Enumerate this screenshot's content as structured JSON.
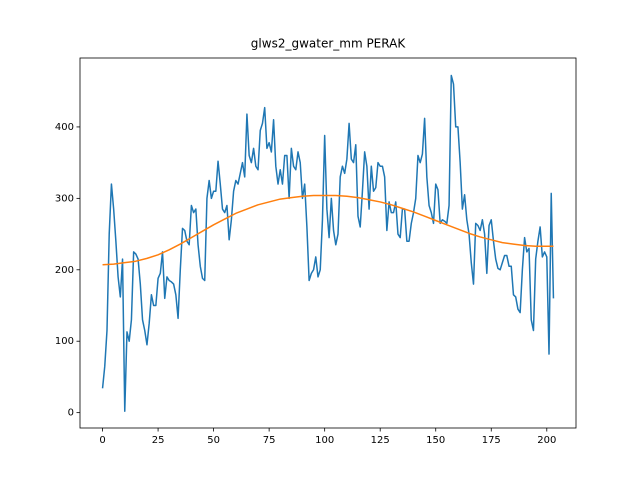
{
  "chart_data": {
    "type": "line",
    "title": "glws2_gwater_mm PERAK",
    "xlim": [
      -10.15,
      213.15
    ],
    "ylim": [
      -21.5,
      496.5
    ],
    "xticks": [
      0,
      25,
      50,
      75,
      100,
      125,
      150,
      175,
      200
    ],
    "yticks": [
      0,
      100,
      200,
      300,
      400
    ],
    "series": [
      {
        "color": "#1f77b4",
        "x": [
          0,
          1,
          2,
          3,
          4,
          5,
          6,
          7,
          8,
          9,
          10,
          11,
          12,
          13,
          14,
          15,
          16,
          17,
          18,
          19,
          20,
          21,
          22,
          23,
          24,
          25,
          26,
          27,
          28,
          29,
          30,
          31,
          32,
          33,
          34,
          35,
          36,
          37,
          38,
          39,
          40,
          41,
          42,
          43,
          44,
          45,
          46,
          47,
          48,
          49,
          50,
          51,
          52,
          53,
          54,
          55,
          56,
          57,
          58,
          59,
          60,
          61,
          62,
          63,
          64,
          65,
          66,
          67,
          68,
          69,
          70,
          71,
          72,
          73,
          74,
          75,
          76,
          77,
          78,
          79,
          80,
          81,
          82,
          83,
          84,
          85,
          86,
          87,
          88,
          89,
          90,
          91,
          92,
          93,
          94,
          95,
          96,
          97,
          98,
          99,
          100,
          101,
          102,
          103,
          104,
          105,
          106,
          107,
          108,
          109,
          110,
          111,
          112,
          113,
          114,
          115,
          116,
          117,
          118,
          119,
          120,
          121,
          122,
          123,
          124,
          125,
          126,
          127,
          128,
          129,
          130,
          131,
          132,
          133,
          134,
          135,
          136,
          137,
          138,
          139,
          140,
          141,
          142,
          143,
          144,
          145,
          146,
          147,
          148,
          149,
          150,
          151,
          152,
          153,
          154,
          155,
          156,
          157,
          158,
          159,
          160,
          161,
          162,
          163,
          164,
          165,
          166,
          167,
          168,
          169,
          170,
          171,
          172,
          173,
          174,
          175,
          176,
          177,
          178,
          179,
          180,
          181,
          182,
          183,
          184,
          185,
          186,
          187,
          188,
          189,
          190,
          191,
          192,
          193,
          194,
          195,
          196,
          197,
          198,
          199,
          200,
          201,
          202,
          203
        ],
        "values": [
          34,
          65,
          115,
          250,
          320,
          285,
          240,
          190,
          162,
          215,
          2,
          113,
          100,
          130,
          225,
          222,
          215,
          180,
          130,
          115,
          95,
          125,
          165,
          150,
          150,
          188,
          195,
          225,
          160,
          190,
          185,
          183,
          180,
          165,
          132,
          200,
          258,
          255,
          240,
          235,
          290,
          280,
          285,
          235,
          205,
          188,
          185,
          300,
          325,
          300,
          310,
          310,
          352,
          320,
          285,
          280,
          290,
          242,
          270,
          310,
          325,
          320,
          335,
          350,
          330,
          418,
          360,
          350,
          370,
          345,
          340,
          395,
          405,
          427,
          370,
          378,
          365,
          410,
          345,
          320,
          340,
          320,
          360,
          360,
          300,
          370,
          345,
          340,
          365,
          350,
          300,
          320,
          260,
          185,
          195,
          200,
          218,
          190,
          200,
          270,
          388,
          285,
          245,
          300,
          255,
          235,
          250,
          330,
          345,
          335,
          355,
          405,
          355,
          350,
          375,
          275,
          260,
          310,
          365,
          345,
          285,
          345,
          310,
          315,
          350,
          345,
          345,
          330,
          255,
          295,
          280,
          280,
          295,
          250,
          245,
          285,
          285,
          240,
          240,
          265,
          280,
          300,
          360,
          350,
          362,
          412,
          330,
          290,
          280,
          265,
          320,
          312,
          265,
          270,
          268,
          265,
          290,
          472,
          460,
          400,
          400,
          350,
          285,
          305,
          270,
          250,
          210,
          180,
          265,
          262,
          255,
          270,
          250,
          195,
          262,
          270,
          240,
          215,
          202,
          200,
          210,
          220,
          220,
          205,
          205,
          165,
          162,
          145,
          140,
          200,
          245,
          225,
          230,
          130,
          115,
          215,
          240,
          260,
          218,
          225,
          218,
          82,
          307,
          160
        ]
      },
      {
        "color": "#ff7f0e",
        "x": [
          0,
          5,
          10,
          15,
          20,
          25,
          30,
          35,
          40,
          45,
          50,
          55,
          60,
          65,
          70,
          75,
          80,
          85,
          90,
          95,
          100,
          105,
          110,
          115,
          120,
          125,
          130,
          135,
          140,
          145,
          150,
          155,
          160,
          165,
          170,
          175,
          180,
          185,
          190,
          195,
          200,
          203
        ],
        "values": [
          207,
          208,
          210,
          212,
          216,
          221,
          228,
          236,
          245,
          254,
          263,
          271,
          279,
          285,
          291,
          295,
          299,
          301,
          303,
          304,
          304,
          304,
          303,
          301,
          298,
          295,
          291,
          286,
          281,
          275,
          269,
          263,
          257,
          251,
          246,
          242,
          238,
          236,
          234,
          233,
          233,
          233
        ]
      }
    ]
  }
}
